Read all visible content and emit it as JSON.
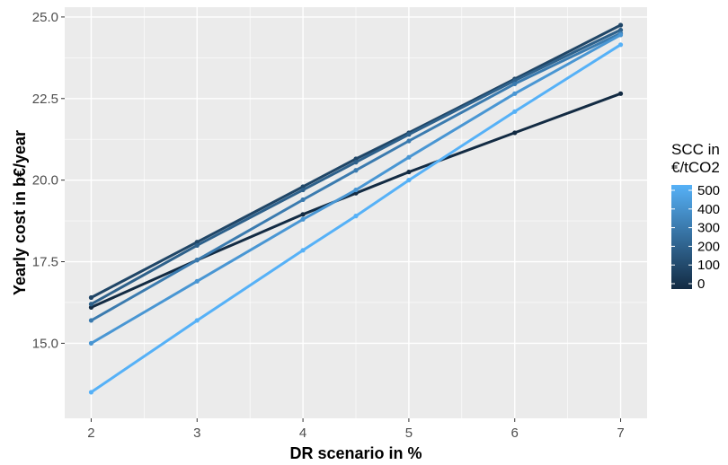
{
  "chart_data": {
    "type": "line",
    "title": "",
    "xlabel": "DR scenario in %",
    "ylabel": "Yearly cost in b€/year",
    "xlim": [
      1.75,
      7.25
    ],
    "ylim": [
      12.7,
      25.3
    ],
    "x_ticks": [
      2,
      3,
      4,
      5,
      6,
      7
    ],
    "x_tick_labels": [
      "2",
      "3",
      "4",
      "5",
      "6",
      "7"
    ],
    "y_ticks": [
      15.0,
      17.5,
      20.0,
      22.5,
      25.0
    ],
    "y_tick_labels": [
      "15.0",
      "17.5",
      "20.0",
      "22.5",
      "25.0"
    ],
    "grid": true,
    "panel_background": "#ebebeb",
    "grid_color": "#ffffff",
    "legend": {
      "position": "right",
      "title_lines": [
        "SCC in",
        "€/tCO2"
      ],
      "ticks": [
        0,
        100,
        200,
        300,
        400,
        500
      ],
      "tick_labels": [
        "0",
        "100",
        "200",
        "300",
        "400",
        "500"
      ],
      "color_low": "#132b43",
      "color_high": "#56b1f7"
    },
    "series": [
      {
        "scc": 0,
        "x": [
          2,
          3,
          4,
          4.5,
          5,
          6,
          7
        ],
        "y": [
          16.1,
          17.55,
          18.95,
          19.6,
          20.25,
          21.45,
          22.65
        ]
      },
      {
        "scc": 100,
        "x": [
          2,
          3,
          4,
          4.5,
          5,
          6,
          7
        ],
        "y": [
          16.4,
          18.1,
          19.8,
          20.65,
          21.45,
          23.1,
          24.75
        ]
      },
      {
        "scc": 200,
        "x": [
          2,
          3,
          4,
          4.5,
          5,
          6,
          7
        ],
        "y": [
          16.2,
          18.0,
          19.7,
          20.55,
          21.4,
          23.05,
          24.6
        ]
      },
      {
        "scc": 300,
        "x": [
          2,
          3,
          4,
          4.5,
          5,
          6,
          7
        ],
        "y": [
          15.7,
          17.55,
          19.4,
          20.3,
          21.2,
          22.95,
          24.5
        ]
      },
      {
        "scc": 400,
        "x": [
          2,
          3,
          4,
          4.5,
          5,
          6,
          7
        ],
        "y": [
          15.0,
          16.9,
          18.8,
          19.7,
          20.7,
          22.65,
          24.45
        ]
      },
      {
        "scc": 500,
        "x": [
          2,
          3,
          4,
          4.5,
          5,
          6,
          7
        ],
        "y": [
          13.5,
          15.7,
          17.85,
          18.9,
          20.0,
          22.1,
          24.15
        ]
      }
    ]
  }
}
